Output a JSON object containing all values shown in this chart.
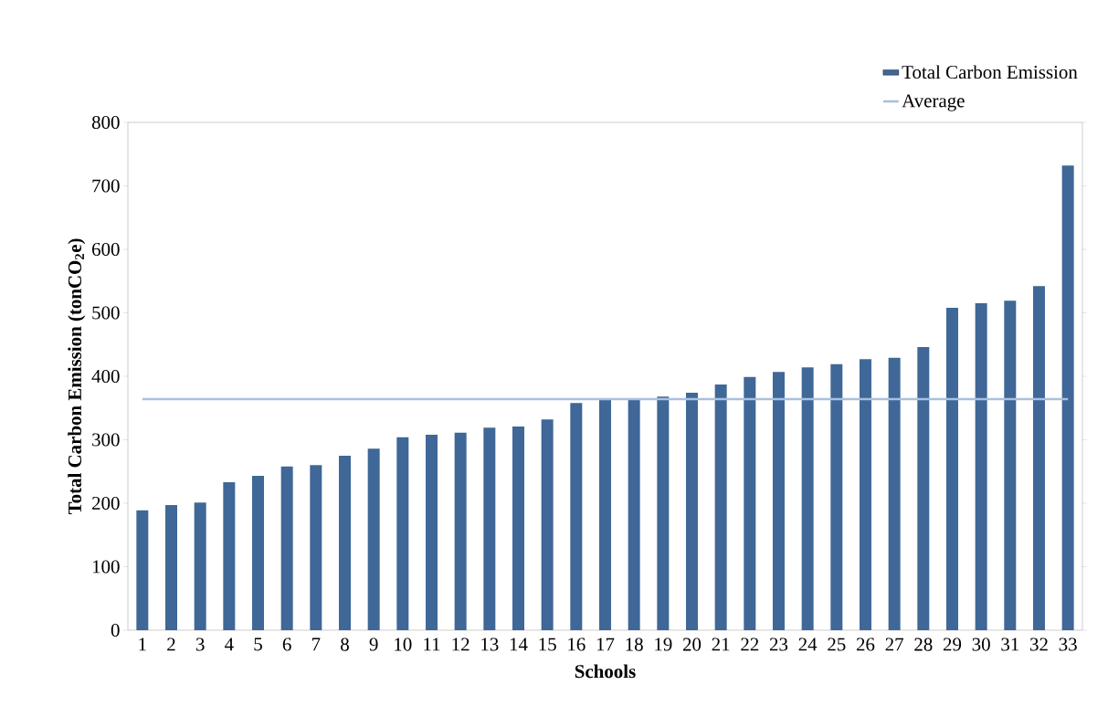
{
  "chart_data": {
    "type": "bar",
    "xlabel": "Schools",
    "ylabel": "Total Carbon Emission (tonCO$_{2}$e)",
    "categories": [
      "1",
      "2",
      "3",
      "4",
      "5",
      "6",
      "7",
      "8",
      "9",
      "10",
      "11",
      "12",
      "13",
      "14",
      "15",
      "16",
      "17",
      "18",
      "19",
      "20",
      "21",
      "22",
      "23",
      "24",
      "25",
      "26",
      "27",
      "28",
      "29",
      "30",
      "31",
      "32",
      "33"
    ],
    "series": [
      {
        "name": "Total Carbon Emission",
        "color": "#3f6797",
        "values": [
          189,
          197,
          201,
          233,
          243,
          258,
          260,
          275,
          286,
          304,
          308,
          311,
          319,
          321,
          332,
          358,
          363,
          364,
          368,
          374,
          387,
          399,
          407,
          414,
          419,
          427,
          429,
          446,
          508,
          515,
          519,
          542,
          732
        ]
      },
      {
        "name": "Average",
        "type": "line",
        "color": "#a9c0de",
        "values": [
          364,
          364,
          364,
          364,
          364,
          364,
          364,
          364,
          364,
          364,
          364,
          364,
          364,
          364,
          364,
          364,
          364,
          364,
          364,
          364,
          364,
          364,
          364,
          364,
          364,
          364,
          364,
          364,
          364,
          364,
          364,
          364,
          364
        ]
      }
    ],
    "ylim": [
      0,
      800
    ],
    "yticks": [
      0,
      100,
      200,
      300,
      400,
      500,
      600,
      700,
      800
    ],
    "grid": false,
    "legend": "top right"
  }
}
